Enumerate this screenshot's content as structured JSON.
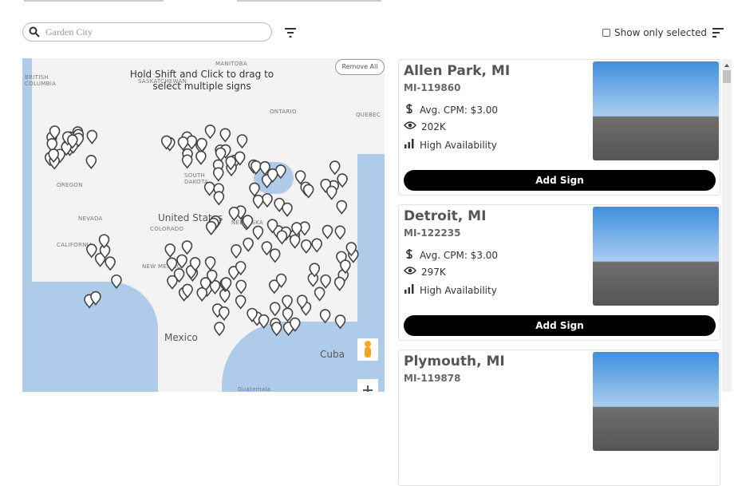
{
  "search": {
    "placeholder": "Garden City"
  },
  "filters": {
    "show_only_selected": "Show only selected"
  },
  "map": {
    "hint": "Hold Shift and Click to drag to select multiple signs",
    "remove_all": "Remove All",
    "labels": [
      "MANITOBA",
      "BRITISH COLUMBIA",
      "SASKATCHEWAN",
      "ONTARIO",
      "QUEBEC",
      "OREGON",
      "SOUTH DAKOTA",
      "NEVADA",
      "United States",
      "NEBRASKA",
      "COLORADO",
      "CALIFORNIA",
      "NEW MEXICO",
      "Mexico",
      "Cuba",
      "Guatemala"
    ]
  },
  "listings": [
    {
      "title": "Allen Park, MI",
      "id": "MI-119860",
      "cpm": "Avg. CPM: $3.00",
      "impressions": "202K",
      "availability": "High Availability",
      "button": "Add Sign"
    },
    {
      "title": "Detroit, MI",
      "id": "MI-122235",
      "cpm": "Avg. CPM: $3.00",
      "impressions": "297K",
      "availability": "High Availability",
      "button": "Add Sign"
    },
    {
      "title": "Plymouth, MI",
      "id": "MI-119878"
    }
  ]
}
